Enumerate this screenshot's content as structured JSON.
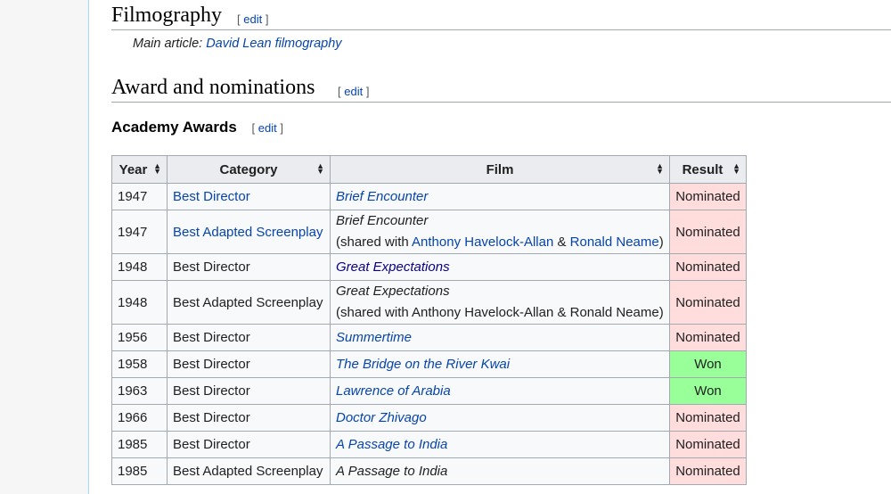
{
  "filmography": {
    "heading": "Filmography",
    "edit_open": "[ ",
    "edit_label": "edit",
    "edit_close": " ]",
    "hatnote_prefix": "Main article: ",
    "hatnote_link": "David Lean filmography"
  },
  "awards": {
    "heading": "Award and nominations",
    "edit_label": "edit"
  },
  "academy": {
    "heading": "Academy Awards",
    "edit_label": "edit"
  },
  "table": {
    "headers": [
      "Year",
      "Category",
      "Film",
      "Result"
    ],
    "rows": [
      {
        "year": "1947",
        "category": "Best Director",
        "film": "Brief Encounter",
        "shared": "",
        "result": "Nominated"
      },
      {
        "year": "1947",
        "category": "Best Adapted Screenplay",
        "film": "Brief Encounter",
        "shared_prefix": "(shared with ",
        "shared_a": "Anthony Havelock-Allan",
        "shared_amp": " & ",
        "shared_b": "Ronald Neame",
        "shared_suffix": ")",
        "result": "Nominated"
      },
      {
        "year": "1948",
        "category": "Best Director",
        "film": "Great Expectations",
        "result": "Nominated"
      },
      {
        "year": "1948",
        "category": "Best Adapted Screenplay",
        "film": "Great Expectations",
        "shared_text": "(shared with Anthony Havelock-Allan & Ronald Neame)",
        "result": "Nominated"
      },
      {
        "year": "1956",
        "category": "Best Director",
        "film": "Summertime",
        "result": "Nominated"
      },
      {
        "year": "1958",
        "category": "Best Director",
        "film": "The Bridge on the River Kwai",
        "result": "Won"
      },
      {
        "year": "1963",
        "category": "Best Director",
        "film": "Lawrence of Arabia",
        "result": "Won"
      },
      {
        "year": "1966",
        "category": "Best Director",
        "film": "Doctor Zhivago",
        "result": "Nominated"
      },
      {
        "year": "1985",
        "category": "Best Director",
        "film": "A Passage to India",
        "result": "Nominated"
      },
      {
        "year": "1985",
        "category": "Best Adapted Screenplay",
        "film": "A Passage to India",
        "result": "Nominated"
      }
    ]
  },
  "colors": {
    "link": "#0645ad",
    "visited_link": "#0b0080",
    "nominated_bg": "#ffdddd",
    "won_bg": "#99ff99"
  }
}
